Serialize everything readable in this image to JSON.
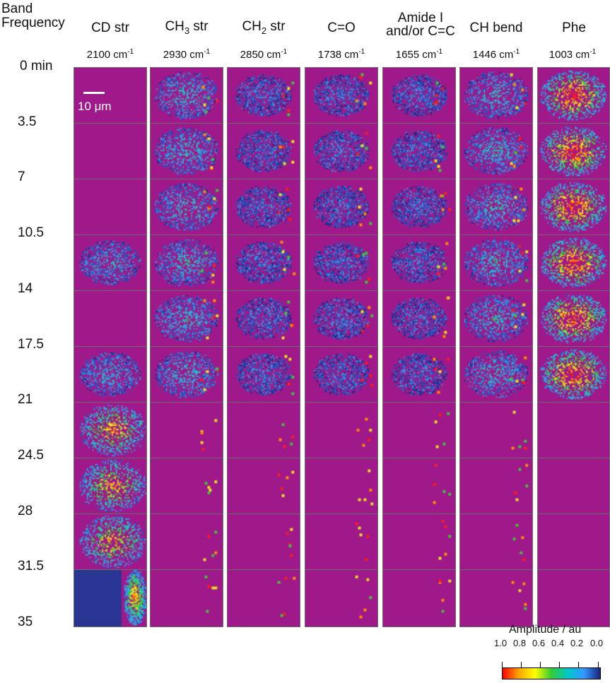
{
  "row_header": {
    "line1": "Band",
    "line2": "Frequency"
  },
  "columns": [
    {
      "title": "CD str",
      "freq": "2100 cm",
      "sup": "-1"
    },
    {
      "title_main": "CH",
      "title_sub": "3",
      "title_end": " str",
      "freq": "2930 cm",
      "sup": "-1"
    },
    {
      "title_main": "CH",
      "title_sub": "2",
      "title_end": " str",
      "freq": "2850 cm",
      "sup": "-1"
    },
    {
      "title": "C=O",
      "freq": "1738 cm",
      "sup": "-1"
    },
    {
      "title_line1": "Amide I",
      "title_line2": "and/or C=C",
      "freq": "1655 cm",
      "sup": "-1"
    },
    {
      "title": "CH bend",
      "freq": "1446 cm",
      "sup": "-1"
    },
    {
      "title": "Phe",
      "freq": "1003 cm",
      "sup": "-1"
    }
  ],
  "times": [
    "0 min",
    "3.5",
    "7",
    "10.5",
    "14",
    "17.5",
    "21",
    "24.5",
    "28",
    "31.5",
    "35"
  ],
  "scale_bar": {
    "label": "10 μm"
  },
  "colorbar": {
    "title": "Amplitude / au",
    "ticks": [
      "1.0",
      "0.8",
      "0.6",
      "0.4",
      "0.2",
      "0.0"
    ],
    "colors": [
      "#ff0000",
      "#ffa500",
      "#ffff00",
      "#33cc33",
      "#00c8c8",
      "#3399ff",
      "#1a237e"
    ]
  }
}
